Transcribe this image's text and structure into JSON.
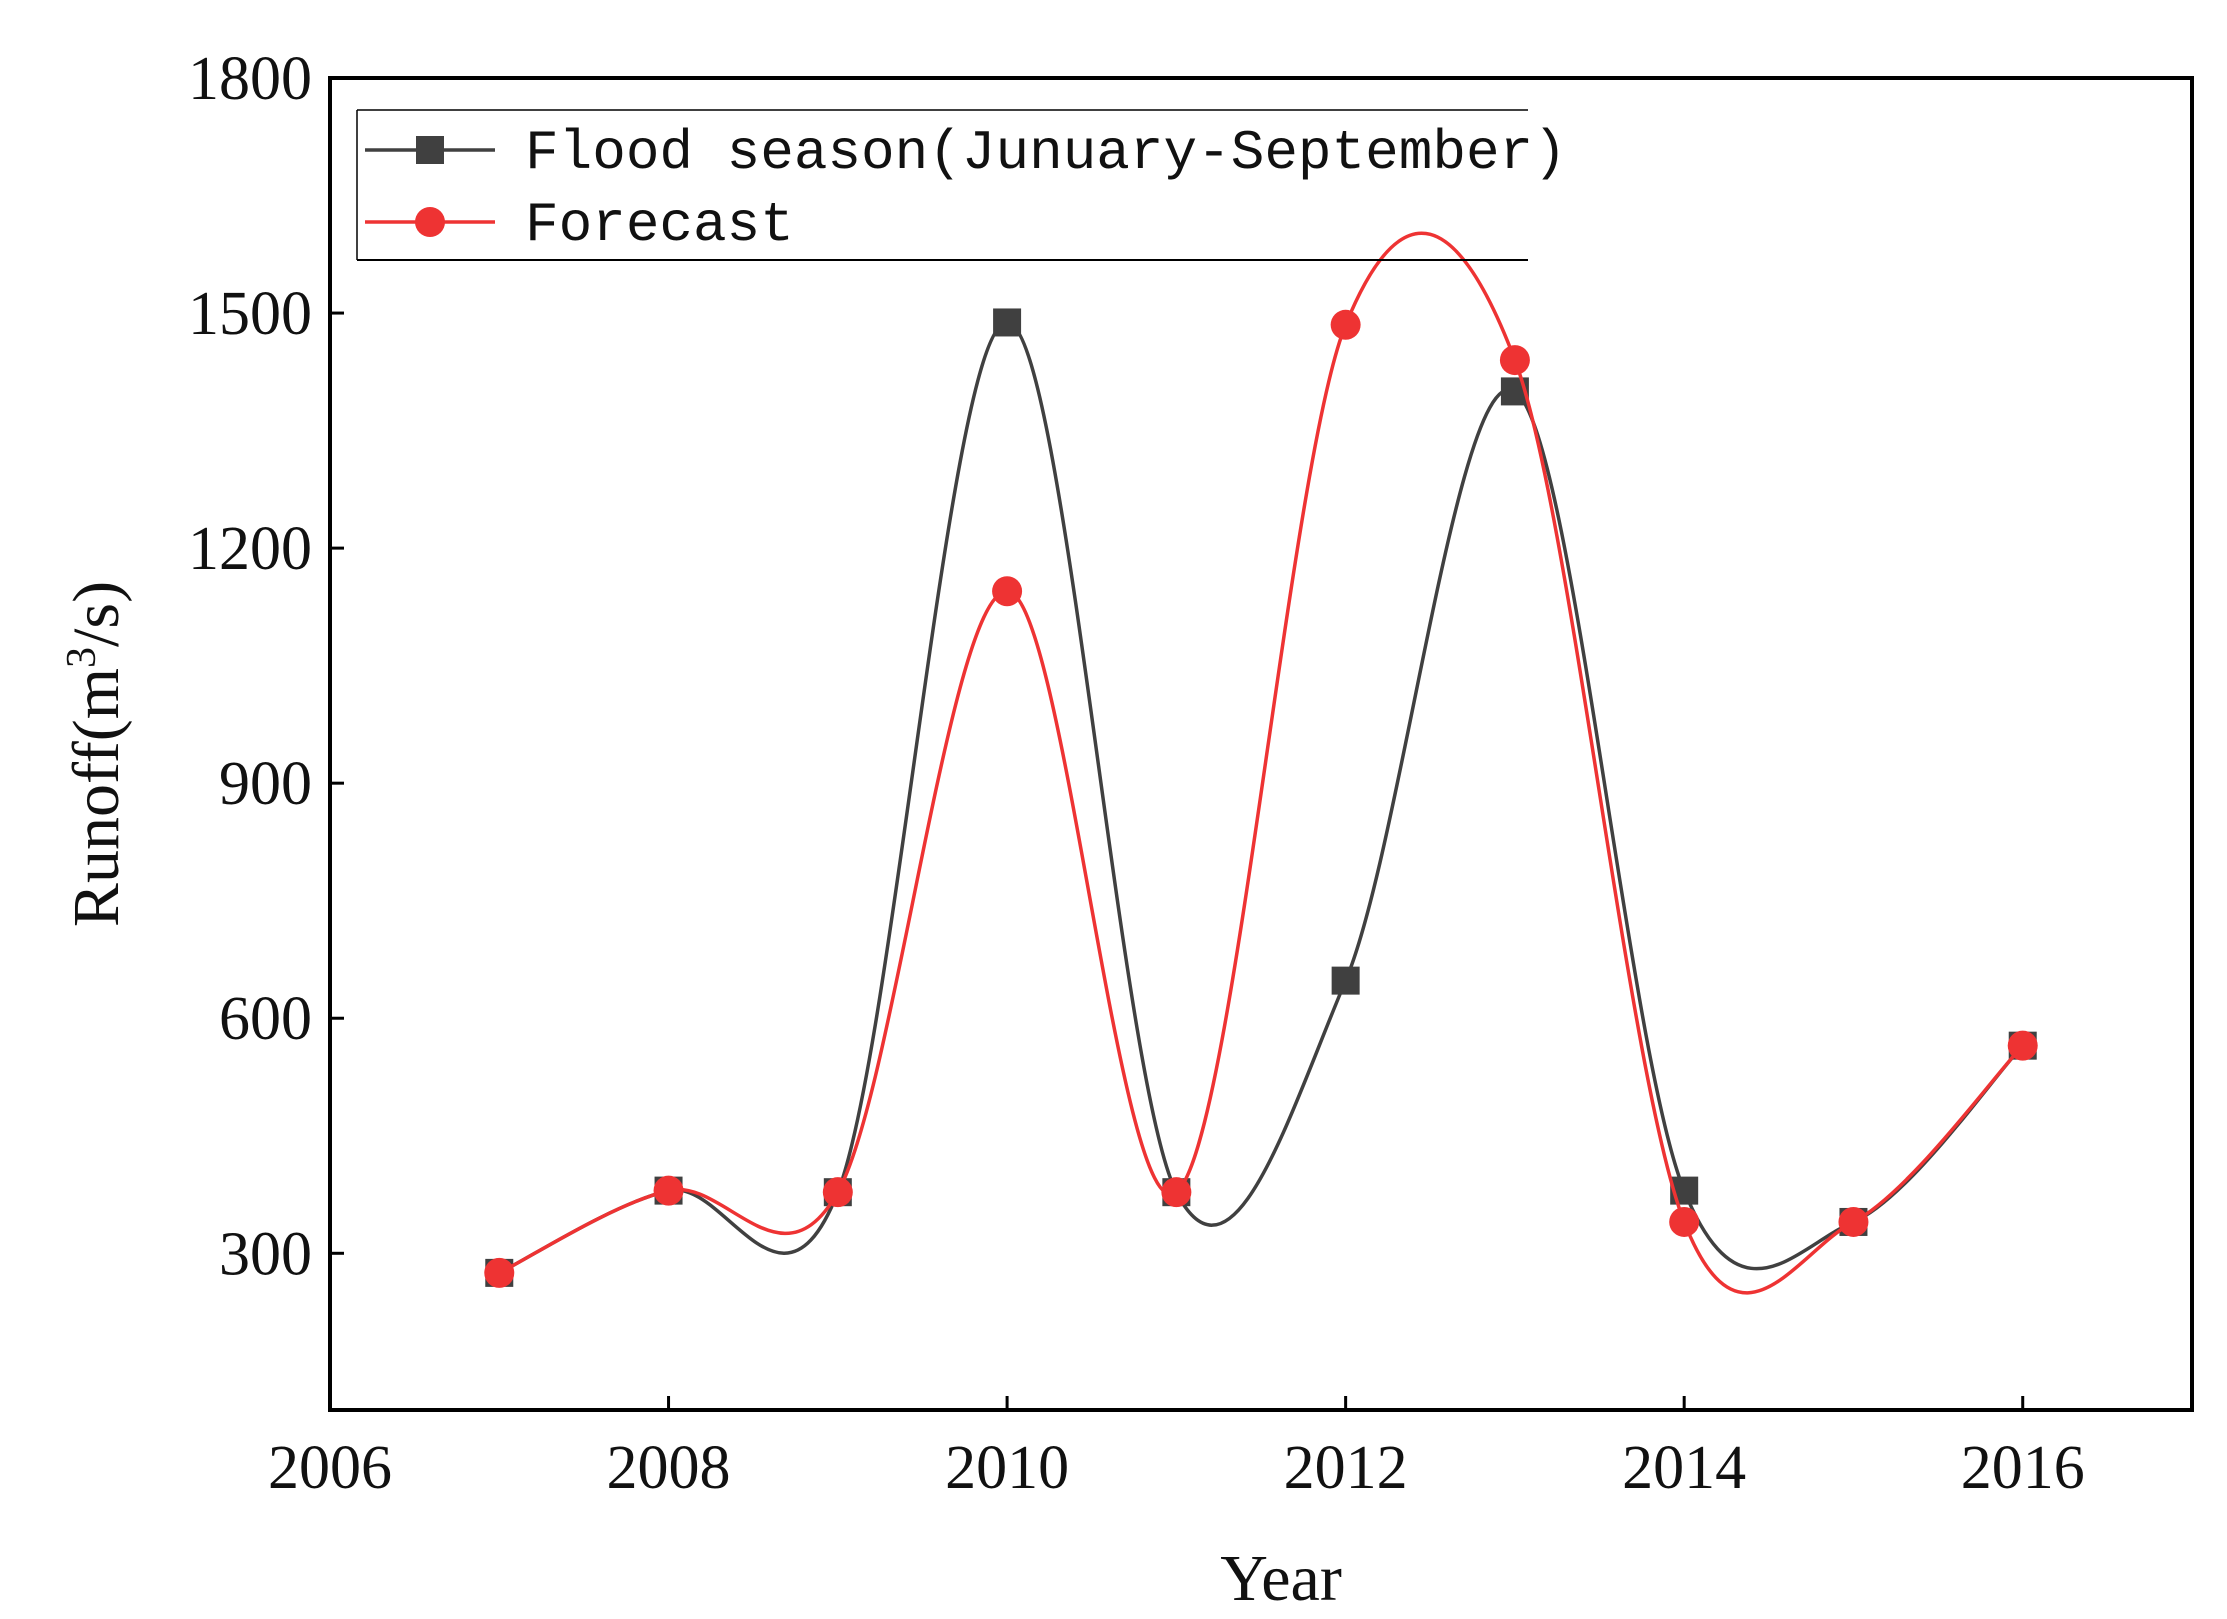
{
  "chart_data": {
    "type": "line",
    "title": "",
    "xlabel": "Year",
    "ylabel": "Runoff",
    "ylabel_unit_prefix": "(m",
    "ylabel_unit_sup": "3",
    "ylabel_unit_suffix": "/s)",
    "xlim": [
      2006,
      2017
    ],
    "ylim": [
      100,
      1800
    ],
    "xticks": [
      2006,
      2008,
      2010,
      2012,
      2014,
      2016
    ],
    "yticks": [
      300,
      600,
      900,
      1200,
      1500,
      1800
    ],
    "grid": false,
    "legend_position": "top-left",
    "smooth": true,
    "x": [
      2007,
      2008,
      2009,
      2010,
      2011,
      2012,
      2013,
      2014,
      2015,
      2016
    ],
    "series": [
      {
        "name": "Flood season(Junuary-September)",
        "color": "#404040",
        "marker": "square",
        "values": [
          275,
          380,
          378,
          1488,
          378,
          648,
          1400,
          380,
          340,
          565
        ]
      },
      {
        "name": "Forecast",
        "color": "#ee3333",
        "marker": "circle",
        "values": [
          275,
          380,
          378,
          1145,
          378,
          1485,
          1440,
          340,
          340,
          565
        ]
      }
    ]
  }
}
